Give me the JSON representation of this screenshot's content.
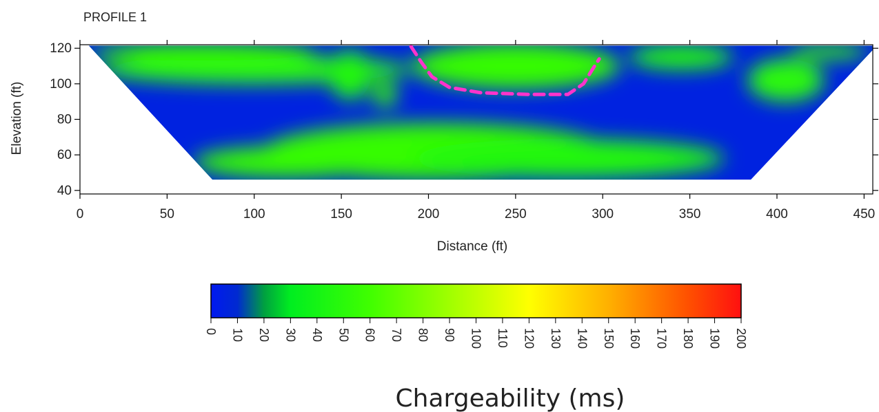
{
  "chart_data": [
    {
      "type": "heatmap",
      "title": "PROFILE 1",
      "xlabel": "Distance (ft)",
      "ylabel": "Elevation (ft)",
      "xlim": [
        0,
        455
      ],
      "ylim": [
        38,
        122
      ],
      "x_ticks": [
        "0",
        "50",
        "100",
        "150",
        "200",
        "250",
        "300",
        "350",
        "400",
        "450"
      ],
      "y_ticks": [
        "40",
        "60",
        "80",
        "100",
        "120"
      ],
      "section_outline": {
        "x": [
          0,
          5,
          76,
          380,
          385,
          455,
          455,
          0
        ],
        "y": [
          121.5,
          121.5,
          46,
          46,
          46,
          119,
          121.5,
          121.5
        ]
      },
      "background_value": 5,
      "zones": [
        {
          "x": 100,
          "y": 108,
          "rx": 90,
          "ry": 8,
          "value": 50
        },
        {
          "x": 70,
          "y": 118,
          "rx": 65,
          "ry": 5,
          "value": 55
        },
        {
          "x": 155,
          "y": 105,
          "rx": 12,
          "ry": 14,
          "value": 45
        },
        {
          "x": 175,
          "y": 94,
          "rx": 7,
          "ry": 7,
          "value": 55
        },
        {
          "x": 250,
          "y": 110,
          "rx": 60,
          "ry": 13,
          "value": 55
        },
        {
          "x": 205,
          "y": 62,
          "rx": 100,
          "ry": 16,
          "value": 55
        },
        {
          "x": 280,
          "y": 58,
          "rx": 90,
          "ry": 11,
          "value": 45
        },
        {
          "x": 120,
          "y": 56,
          "rx": 55,
          "ry": 9,
          "value": 55
        },
        {
          "x": 405,
          "y": 102,
          "rx": 22,
          "ry": 12,
          "value": 50
        },
        {
          "x": 345,
          "y": 115,
          "rx": 30,
          "ry": 7,
          "value": 45
        },
        {
          "x": 430,
          "y": 118,
          "rx": 22,
          "ry": 4,
          "value": 55
        }
      ],
      "boundary_line": {
        "color": "#ff33cc",
        "style": "dashed",
        "x": [
          190,
          196,
          202,
          212,
          230,
          258,
          280,
          289,
          294,
          298
        ],
        "y": [
          121,
          112,
          104,
          98,
          95,
          94,
          94,
          100,
          108,
          114
        ]
      },
      "grid": false
    },
    {
      "type": "colorbar",
      "label": "Chargeability (ms)",
      "range": [
        0,
        200
      ],
      "ticks": [
        "0",
        "10",
        "20",
        "30",
        "40",
        "50",
        "60",
        "70",
        "80",
        "90",
        "100",
        "110",
        "120",
        "130",
        "140",
        "150",
        "160",
        "170",
        "180",
        "190",
        "200"
      ],
      "tick_label_orientation": "vertical",
      "color_stops": [
        {
          "value": 0,
          "color": "#0019f0"
        },
        {
          "value": 10,
          "color": "#002ad0"
        },
        {
          "value": 20,
          "color": "#00a040"
        },
        {
          "value": 30,
          "color": "#00ee20"
        },
        {
          "value": 60,
          "color": "#40ff00"
        },
        {
          "value": 90,
          "color": "#a0ff00"
        },
        {
          "value": 120,
          "color": "#ffff00"
        },
        {
          "value": 150,
          "color": "#ffb000"
        },
        {
          "value": 180,
          "color": "#ff5000"
        },
        {
          "value": 200,
          "color": "#ff1010"
        }
      ]
    }
  ]
}
